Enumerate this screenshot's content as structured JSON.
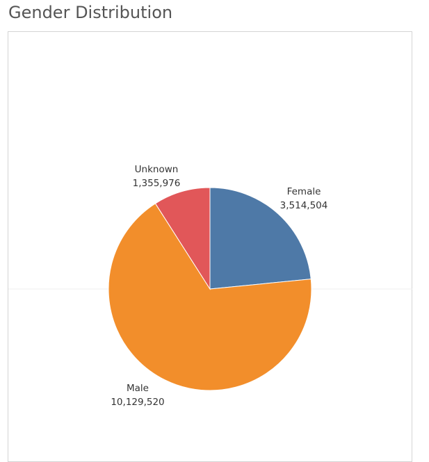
{
  "title": "Gender Distribution",
  "chart_data": {
    "type": "pie",
    "title": "Gender Distribution",
    "slices": [
      {
        "label": "Female",
        "value": 3514504,
        "value_label": "3,514,504",
        "color": "#4e79a7"
      },
      {
        "label": "Male",
        "value": 10129520,
        "value_label": "10,129,520",
        "color": "#f28e2b"
      },
      {
        "label": "Unknown",
        "value": 1355976,
        "value_label": "1,355,976",
        "color": "#e15759"
      }
    ],
    "start_angle": "12 o'clock",
    "direction": "clockwise",
    "legend": "none"
  }
}
